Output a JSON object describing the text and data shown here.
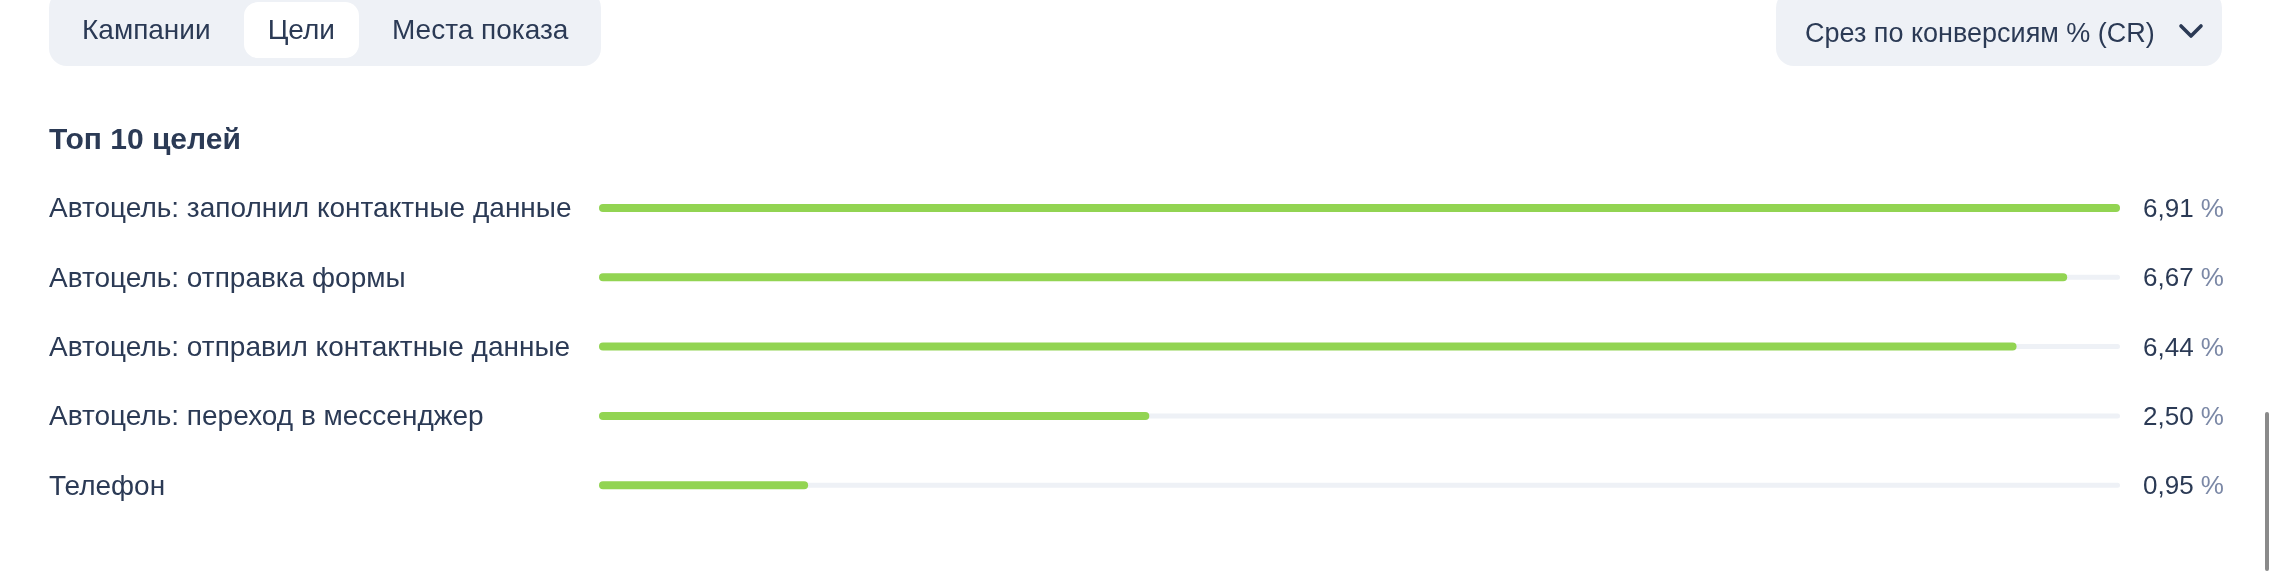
{
  "chart_data": {
    "type": "bar",
    "orientation": "horizontal",
    "title": "Топ 10 целей",
    "categories": [
      "Автоцель: заполнил контактные данные",
      "Автоцель: отправка формы",
      "Автоцель: отправил контактные данные",
      "Автоцель: переход в мессенджер",
      "Телефон"
    ],
    "values": [
      6.91,
      6.67,
      6.44,
      2.5,
      0.95
    ],
    "color": "#92d452",
    "xlim": [
      0,
      6.91
    ],
    "tick_labels": "y",
    "value_labels": [
      "6,91 %",
      "6,67 %",
      "6,44 %",
      "2,50 %",
      "0,95 %"
    ],
    "annotations": [
      "Кампании",
      "Цели",
      "Места показа",
      "Срез по конверсиям % (CR)"
    ]
  }
}
